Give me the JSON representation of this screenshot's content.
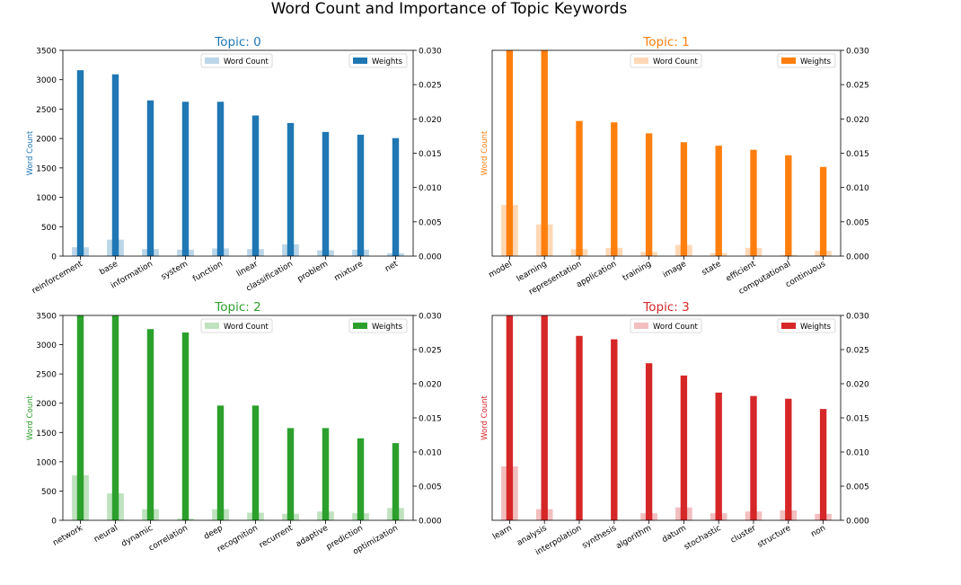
{
  "figure_title": "Word Count and Importance of Topic Keywords",
  "legend_labels": {
    "count": "Word Count",
    "weight": "Weights"
  },
  "y_left_label": "Word Count",
  "colors": {
    "topic0": "#1f77b4",
    "topic1": "#ff7f0e",
    "topic2": "#2ca02c",
    "topic3": "#d62728"
  },
  "chart_data": [
    {
      "type": "bar",
      "title": "Topic: 0",
      "color": "#1f77b4",
      "categories": [
        "reinforcement",
        "base",
        "information",
        "system",
        "function",
        "linear",
        "classification",
        "problem",
        "mixture",
        "net"
      ],
      "ylabel": "Word Count",
      "ylim_left": [
        0,
        3500
      ],
      "ylim_right": [
        0,
        0.03
      ],
      "yticks_left": [
        "0",
        "500",
        "1000",
        "1500",
        "2000",
        "2500",
        "3000",
        "3500"
      ],
      "yticks_right": [
        "0.000",
        "0.005",
        "0.010",
        "0.015",
        "0.020",
        "0.025",
        "0.030"
      ],
      "series": [
        {
          "name": "Word Count",
          "axis": "left",
          "values": [
            150,
            280,
            120,
            110,
            130,
            120,
            200,
            100,
            110,
            50
          ]
        },
        {
          "name": "Weights",
          "axis": "right",
          "values": [
            0.0271,
            0.0265,
            0.0227,
            0.0225,
            0.0225,
            0.0205,
            0.0194,
            0.0181,
            0.0177,
            0.0172
          ]
        }
      ],
      "legend": "top"
    },
    {
      "type": "bar",
      "title": "Topic: 1",
      "color": "#ff7f0e",
      "categories": [
        "model",
        "learning",
        "representation",
        "application",
        "training",
        "image",
        "state",
        "efficient",
        "computational",
        "continuous"
      ],
      "ylabel": "Word Count",
      "ylim_left": [
        0,
        3500
      ],
      "ylim_right": [
        0,
        0.03
      ],
      "yticks_left": [],
      "yticks_right": [
        "0.000",
        "0.005",
        "0.010",
        "0.015",
        "0.020",
        "0.025",
        "0.030"
      ],
      "series": [
        {
          "name": "Word Count",
          "axis": "left",
          "values": [
            870,
            540,
            120,
            140,
            70,
            190,
            50,
            140,
            20,
            90
          ]
        },
        {
          "name": "Weights",
          "axis": "right",
          "values": [
            0.031,
            0.031,
            0.0197,
            0.0195,
            0.0179,
            0.0166,
            0.0161,
            0.0155,
            0.0147,
            0.013
          ]
        }
      ],
      "legend": "top"
    },
    {
      "type": "bar",
      "title": "Topic: 2",
      "color": "#2ca02c",
      "categories": [
        "network",
        "neural",
        "dynamic",
        "correlation",
        "deep",
        "recognition",
        "recurrent",
        "adaptive",
        "prediction",
        "optimization"
      ],
      "ylabel": "Word Count",
      "ylim_left": [
        0,
        3500
      ],
      "ylim_right": [
        0,
        0.03
      ],
      "yticks_left": [
        "0",
        "500",
        "1000",
        "1500",
        "2000",
        "2500",
        "3000",
        "3500"
      ],
      "yticks_right": [
        "0.000",
        "0.005",
        "0.010",
        "0.015",
        "0.020",
        "0.025",
        "0.030"
      ],
      "series": [
        {
          "name": "Word Count",
          "axis": "left",
          "values": [
            770,
            460,
            190,
            30,
            190,
            130,
            110,
            150,
            120,
            210
          ]
        },
        {
          "name": "Weights",
          "axis": "right",
          "values": [
            0.031,
            0.031,
            0.028,
            0.0275,
            0.0168,
            0.0168,
            0.0135,
            0.0135,
            0.012,
            0.0113
          ]
        }
      ],
      "legend": "top"
    },
    {
      "type": "bar",
      "title": "Topic: 3",
      "color": "#d62728",
      "categories": [
        "learn",
        "analysis",
        "interpolation",
        "synthesis",
        "algorithm",
        "datum",
        "stochastic",
        "cluster",
        "structure",
        "non"
      ],
      "ylabel": "Word Count",
      "ylim_left": [
        0,
        3500
      ],
      "ylim_right": [
        0,
        0.03
      ],
      "yticks_left": [],
      "yticks_right": [
        "0.000",
        "0.005",
        "0.010",
        "0.015",
        "0.020",
        "0.025",
        "0.030"
      ],
      "series": [
        {
          "name": "Word Count",
          "axis": "left",
          "values": [
            920,
            190,
            0,
            0,
            120,
            220,
            120,
            150,
            170,
            110
          ]
        },
        {
          "name": "Weights",
          "axis": "right",
          "values": [
            0.031,
            0.031,
            0.027,
            0.0265,
            0.023,
            0.0212,
            0.0187,
            0.0182,
            0.0178,
            0.0163
          ]
        }
      ],
      "legend": "top"
    }
  ]
}
